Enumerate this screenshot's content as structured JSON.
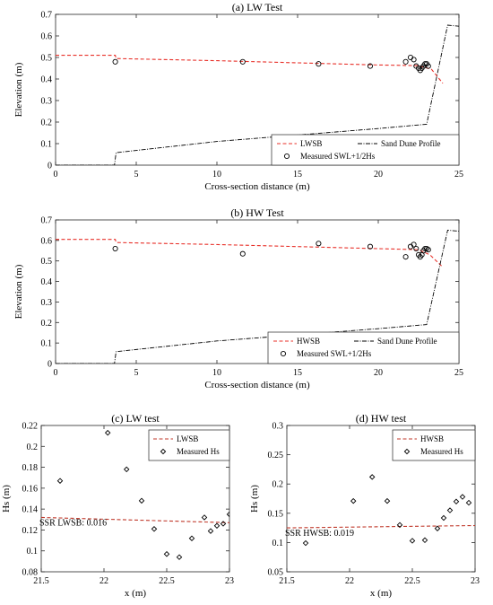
{
  "chart_data": [
    {
      "type": "line",
      "title": "(a) LW Test",
      "xlabel": "Cross-section distance (m)",
      "ylabel": "Elevation (m)",
      "xlim": [
        0,
        25
      ],
      "ylim": [
        0,
        0.7
      ],
      "xticks": [
        0,
        5,
        10,
        15,
        20,
        25
      ],
      "yticks": [
        0,
        0.1,
        0.2,
        0.3,
        0.4,
        0.5,
        0.6,
        0.7
      ],
      "grid": false,
      "legend_position": "bottom-right",
      "series": [
        {
          "name": "LWSB",
          "style": "dashed",
          "color": "#e8312a",
          "x": [
            0,
            3.7,
            3.75,
            10,
            15,
            20,
            22.5,
            23.3,
            24
          ],
          "y": [
            0.51,
            0.51,
            0.495,
            0.485,
            0.475,
            0.465,
            0.462,
            0.445,
            0.38
          ]
        },
        {
          "name": "Sand Dune Profile",
          "style": "dash-dot",
          "color": "#000000",
          "x": [
            0,
            3.65,
            3.75,
            10,
            20,
            23,
            24.3,
            25
          ],
          "y": [
            0,
            0,
            0.058,
            0.11,
            0.17,
            0.19,
            0.65,
            0.645
          ]
        },
        {
          "name": "Measured SWL+1/2Hs",
          "style": "marker-circle",
          "color": "#000000",
          "x": [
            3.7,
            11.6,
            16.3,
            19.5,
            21.7,
            22.0,
            22.2,
            22.35,
            22.5,
            22.6,
            22.7,
            22.8,
            22.9,
            23.0,
            23.1
          ],
          "y": [
            0.48,
            0.48,
            0.47,
            0.46,
            0.48,
            0.5,
            0.49,
            0.46,
            0.45,
            0.44,
            0.45,
            0.46,
            0.47,
            0.47,
            0.46
          ]
        }
      ]
    },
    {
      "type": "line",
      "title": "(b) HW Test",
      "xlabel": "Cross-section distance (m)",
      "ylabel": "Elevation (m)",
      "xlim": [
        0,
        25
      ],
      "ylim": [
        0,
        0.7
      ],
      "xticks": [
        0,
        5,
        10,
        15,
        20,
        25
      ],
      "yticks": [
        0,
        0.1,
        0.2,
        0.3,
        0.4,
        0.5,
        0.6,
        0.7
      ],
      "grid": false,
      "legend_position": "bottom-right",
      "series": [
        {
          "name": "HWSB",
          "style": "dashed",
          "color": "#e8312a",
          "x": [
            0,
            3.7,
            3.75,
            10,
            15,
            20,
            22.5,
            23.2,
            24
          ],
          "y": [
            0.605,
            0.605,
            0.59,
            0.58,
            0.57,
            0.56,
            0.555,
            0.53,
            0.47
          ]
        },
        {
          "name": "Sand Dune Profile",
          "style": "dash-dot",
          "color": "#000000",
          "x": [
            0,
            3.65,
            3.75,
            10,
            20,
            23,
            24.3,
            25
          ],
          "y": [
            0,
            0,
            0.058,
            0.11,
            0.17,
            0.19,
            0.65,
            0.645
          ]
        },
        {
          "name": "Measured SWL+1/2Hs",
          "style": "marker-circle",
          "color": "#000000",
          "x": [
            3.7,
            11.6,
            16.3,
            19.5,
            21.7,
            22.0,
            22.2,
            22.35,
            22.5,
            22.6,
            22.7,
            22.8,
            22.9,
            23.0,
            23.1
          ],
          "y": [
            0.56,
            0.535,
            0.585,
            0.57,
            0.52,
            0.57,
            0.58,
            0.56,
            0.53,
            0.52,
            0.53,
            0.55,
            0.56,
            0.56,
            0.555
          ]
        }
      ]
    },
    {
      "type": "scatter",
      "title": "(c) LW test",
      "xlabel": "x (m)",
      "ylabel": "Hs (m)",
      "xlim": [
        21.5,
        23
      ],
      "ylim": [
        0.08,
        0.22
      ],
      "xticks": [
        21.5,
        22,
        22.5,
        23
      ],
      "yticks": [
        0.08,
        0.1,
        0.12,
        0.14,
        0.16,
        0.18,
        0.2,
        0.22
      ],
      "grid": false,
      "legend_position": "top-right",
      "annotation": "SSR LWSB: 0.016",
      "series": [
        {
          "name": "LWSB",
          "style": "dashed",
          "color": "#c0392b",
          "x": [
            21.5,
            23
          ],
          "y": [
            0.132,
            0.127
          ]
        },
        {
          "name": "Measured Hs",
          "style": "marker-diamond",
          "color": "#000000",
          "x": [
            21.65,
            22.03,
            22.18,
            22.3,
            22.4,
            22.5,
            22.6,
            22.7,
            22.8,
            22.85,
            22.9,
            22.95,
            23.0
          ],
          "y": [
            0.167,
            0.213,
            0.178,
            0.148,
            0.121,
            0.097,
            0.094,
            0.112,
            0.132,
            0.119,
            0.124,
            0.126,
            0.135
          ]
        }
      ]
    },
    {
      "type": "scatter",
      "title": "(d) HW test",
      "xlabel": "x (m)",
      "ylabel": "Hs (m)",
      "xlim": [
        21.5,
        23
      ],
      "ylim": [
        0.05,
        0.3
      ],
      "xticks": [
        21.5,
        22,
        22.5,
        23
      ],
      "yticks": [
        0.05,
        0.1,
        0.15,
        0.2,
        0.25,
        0.3
      ],
      "grid": false,
      "legend_position": "top-right",
      "annotation": "SSR HWSB: 0.019",
      "series": [
        {
          "name": "HWSB",
          "style": "dashed",
          "color": "#c0392b",
          "x": [
            21.5,
            23
          ],
          "y": [
            0.125,
            0.129
          ]
        },
        {
          "name": "Measured Hs",
          "style": "marker-diamond",
          "color": "#000000",
          "x": [
            21.65,
            22.03,
            22.18,
            22.3,
            22.4,
            22.5,
            22.6,
            22.7,
            22.75,
            22.8,
            22.85,
            22.9,
            22.95
          ],
          "y": [
            0.099,
            0.171,
            0.212,
            0.171,
            0.13,
            0.103,
            0.104,
            0.124,
            0.142,
            0.155,
            0.17,
            0.178,
            0.168
          ]
        }
      ]
    }
  ]
}
